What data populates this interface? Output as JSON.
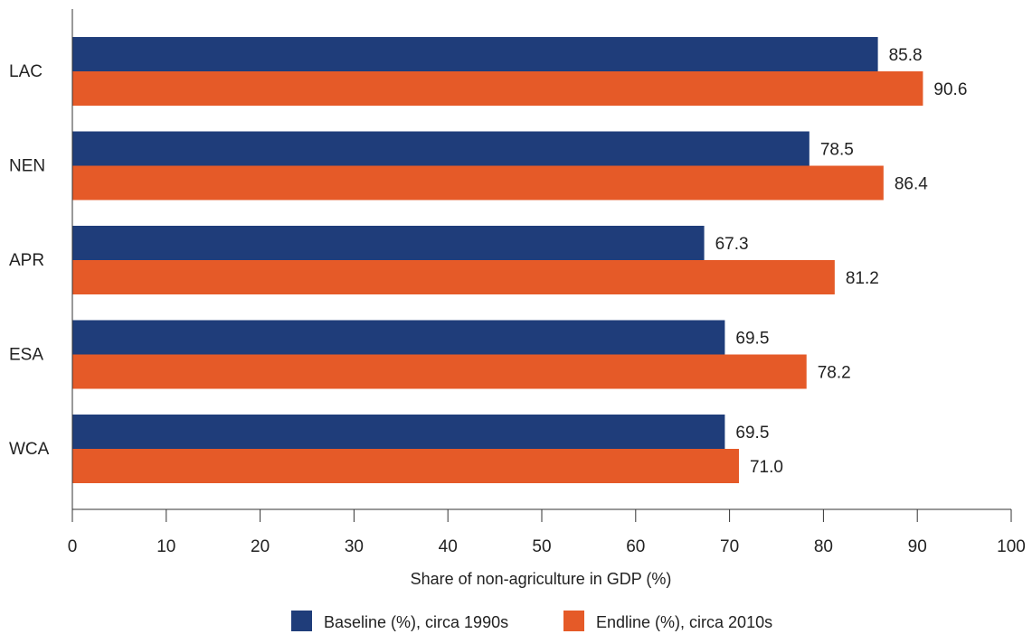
{
  "chart_data": {
    "type": "bar",
    "orientation": "horizontal",
    "categories": [
      "LAC",
      "NEN",
      "APR",
      "ESA",
      "WCA"
    ],
    "series": [
      {
        "name": "Baseline (%), circa 1990s",
        "values": [
          85.8,
          78.5,
          67.3,
          69.5,
          69.5
        ],
        "color": "#1f3d7a"
      },
      {
        "name": "Endline (%), circa 2010s",
        "values": [
          90.6,
          86.4,
          81.2,
          78.2,
          71.0
        ],
        "color": "#e55a28"
      }
    ],
    "xlabel": "Share of non-agriculture in GDP (%)",
    "ylabel": "",
    "xlim": [
      0,
      100
    ],
    "xticks": [
      0,
      10,
      20,
      30,
      40,
      50,
      60,
      70,
      80,
      90,
      100
    ],
    "data_label_decimals": 1,
    "grid": false,
    "legend_position": "bottom-center"
  }
}
